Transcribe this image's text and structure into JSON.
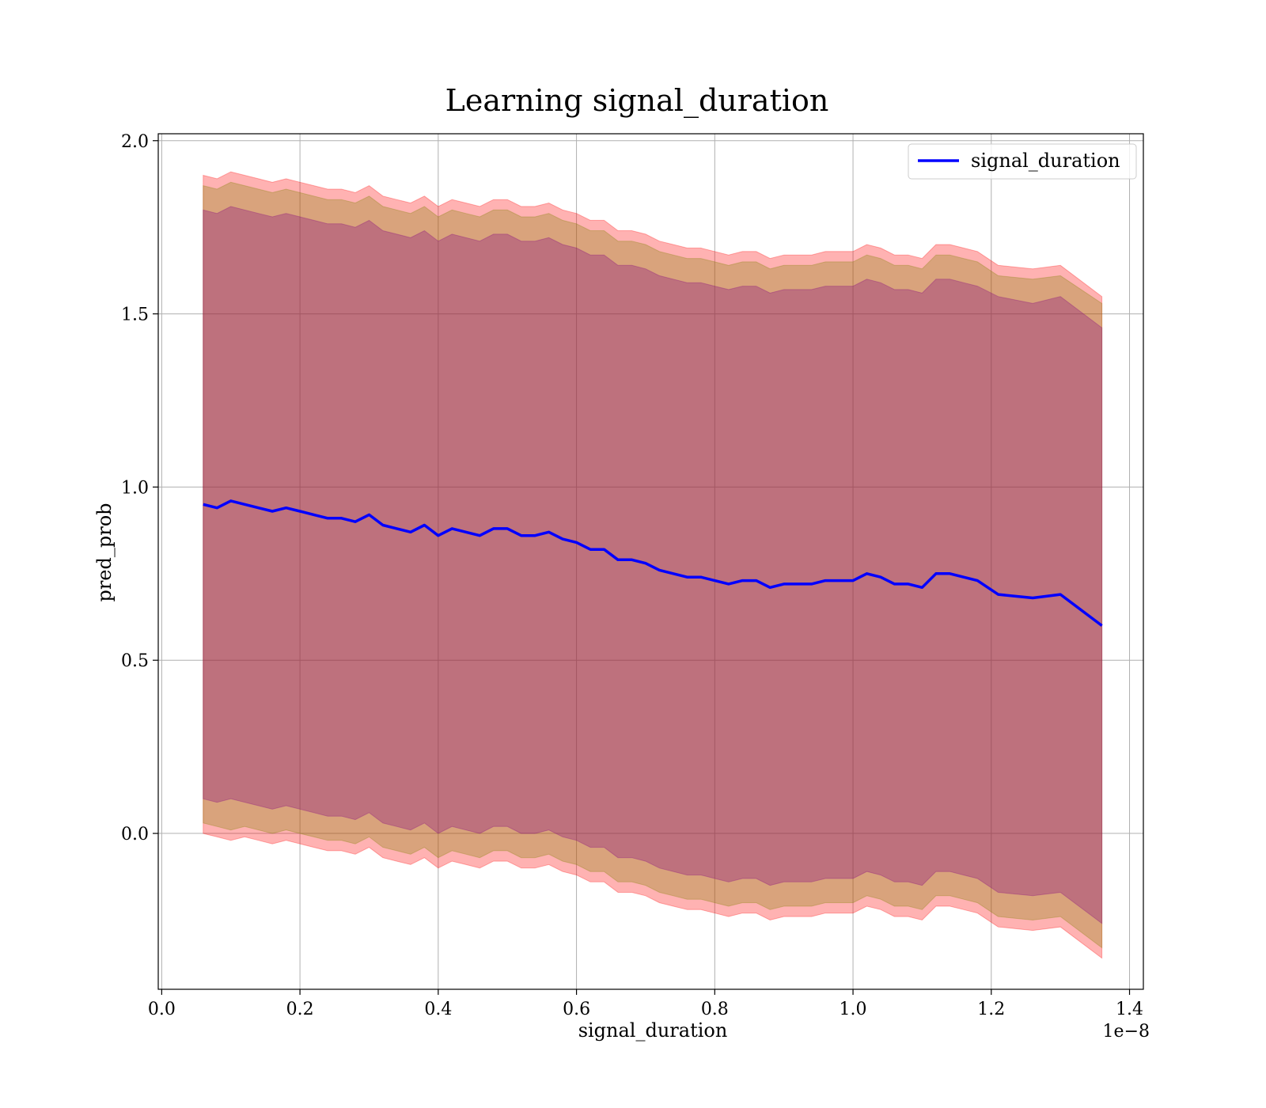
{
  "chart_data": {
    "type": "line",
    "title": "Learning signal_duration",
    "xlabel": "signal_duration",
    "ylabel": "pred_prob",
    "x_offset_label": "1e−8",
    "xlim": [
      -0.005,
      1.42
    ],
    "ylim": [
      -0.45,
      2.02
    ],
    "xticks": [
      0.0,
      0.2,
      0.4,
      0.6,
      0.8,
      1.0,
      1.2,
      1.4
    ],
    "xtick_labels": [
      "0.0",
      "0.2",
      "0.4",
      "0.6",
      "0.8",
      "1.0",
      "1.2",
      "1.4"
    ],
    "yticks": [
      0.0,
      0.5,
      1.0,
      1.5,
      2.0
    ],
    "ytick_labels": [
      "0.0",
      "0.5",
      "1.0",
      "1.5",
      "2.0"
    ],
    "grid": true,
    "legend_position": "top-right",
    "x": [
      0.06,
      0.08,
      0.1,
      0.12,
      0.14,
      0.16,
      0.18,
      0.2,
      0.22,
      0.24,
      0.26,
      0.28,
      0.3,
      0.32,
      0.34,
      0.36,
      0.38,
      0.4,
      0.42,
      0.44,
      0.46,
      0.48,
      0.5,
      0.52,
      0.54,
      0.56,
      0.58,
      0.6,
      0.62,
      0.64,
      0.66,
      0.68,
      0.7,
      0.72,
      0.74,
      0.76,
      0.78,
      0.8,
      0.82,
      0.84,
      0.86,
      0.88,
      0.9,
      0.92,
      0.94,
      0.96,
      0.98,
      1.0,
      1.02,
      1.04,
      1.06,
      1.08,
      1.1,
      1.12,
      1.14,
      1.16,
      1.18,
      1.21,
      1.26,
      1.3,
      1.36
    ],
    "series": [
      {
        "name": "signal_duration",
        "color": "#0000ff",
        "values": [
          0.95,
          0.94,
          0.96,
          0.95,
          0.94,
          0.93,
          0.94,
          0.93,
          0.92,
          0.91,
          0.91,
          0.9,
          0.92,
          0.89,
          0.88,
          0.87,
          0.89,
          0.86,
          0.88,
          0.87,
          0.86,
          0.88,
          0.88,
          0.86,
          0.86,
          0.87,
          0.85,
          0.84,
          0.82,
          0.82,
          0.79,
          0.79,
          0.78,
          0.76,
          0.75,
          0.74,
          0.74,
          0.73,
          0.72,
          0.73,
          0.73,
          0.71,
          0.72,
          0.72,
          0.72,
          0.73,
          0.73,
          0.73,
          0.75,
          0.74,
          0.72,
          0.72,
          0.71,
          0.75,
          0.75,
          0.74,
          0.73,
          0.69,
          0.68,
          0.69,
          0.6
        ]
      }
    ],
    "bands": [
      {
        "color": "#ff0000",
        "opacity": 0.3,
        "lower": [
          0.0,
          -0.01,
          -0.02,
          -0.01,
          -0.02,
          -0.03,
          -0.02,
          -0.03,
          -0.04,
          -0.05,
          -0.05,
          -0.06,
          -0.04,
          -0.07,
          -0.08,
          -0.09,
          -0.07,
          -0.1,
          -0.08,
          -0.09,
          -0.1,
          -0.08,
          -0.08,
          -0.1,
          -0.1,
          -0.09,
          -0.11,
          -0.12,
          -0.14,
          -0.14,
          -0.17,
          -0.17,
          -0.18,
          -0.2,
          -0.21,
          -0.22,
          -0.22,
          -0.23,
          -0.24,
          -0.23,
          -0.23,
          -0.25,
          -0.24,
          -0.24,
          -0.24,
          -0.23,
          -0.23,
          -0.23,
          -0.21,
          -0.22,
          -0.24,
          -0.24,
          -0.25,
          -0.21,
          -0.21,
          -0.22,
          -0.23,
          -0.27,
          -0.28,
          -0.27,
          -0.36
        ],
        "upper": [
          1.9,
          1.89,
          1.91,
          1.9,
          1.89,
          1.88,
          1.89,
          1.88,
          1.87,
          1.86,
          1.86,
          1.85,
          1.87,
          1.84,
          1.83,
          1.82,
          1.84,
          1.81,
          1.83,
          1.82,
          1.81,
          1.83,
          1.83,
          1.81,
          1.81,
          1.82,
          1.8,
          1.79,
          1.77,
          1.77,
          1.74,
          1.74,
          1.73,
          1.71,
          1.7,
          1.69,
          1.69,
          1.68,
          1.67,
          1.68,
          1.68,
          1.66,
          1.67,
          1.67,
          1.67,
          1.68,
          1.68,
          1.68,
          1.7,
          1.69,
          1.67,
          1.67,
          1.66,
          1.7,
          1.7,
          1.69,
          1.68,
          1.64,
          1.63,
          1.64,
          1.55
        ]
      },
      {
        "color": "#808000",
        "opacity": 0.3,
        "lower": [
          0.03,
          0.02,
          0.01,
          0.02,
          0.01,
          0.0,
          0.01,
          0.0,
          -0.01,
          -0.02,
          -0.02,
          -0.03,
          -0.01,
          -0.04,
          -0.05,
          -0.06,
          -0.04,
          -0.07,
          -0.05,
          -0.06,
          -0.07,
          -0.05,
          -0.05,
          -0.07,
          -0.07,
          -0.06,
          -0.08,
          -0.09,
          -0.11,
          -0.11,
          -0.14,
          -0.14,
          -0.15,
          -0.17,
          -0.18,
          -0.19,
          -0.19,
          -0.2,
          -0.21,
          -0.2,
          -0.2,
          -0.22,
          -0.21,
          -0.21,
          -0.21,
          -0.2,
          -0.2,
          -0.2,
          -0.18,
          -0.19,
          -0.21,
          -0.21,
          -0.22,
          -0.18,
          -0.18,
          -0.19,
          -0.2,
          -0.24,
          -0.25,
          -0.24,
          -0.33
        ],
        "upper": [
          1.87,
          1.86,
          1.88,
          1.87,
          1.86,
          1.85,
          1.86,
          1.85,
          1.84,
          1.83,
          1.83,
          1.82,
          1.84,
          1.81,
          1.8,
          1.79,
          1.81,
          1.78,
          1.8,
          1.79,
          1.78,
          1.8,
          1.8,
          1.78,
          1.78,
          1.79,
          1.77,
          1.76,
          1.74,
          1.74,
          1.71,
          1.71,
          1.7,
          1.68,
          1.67,
          1.66,
          1.66,
          1.65,
          1.64,
          1.65,
          1.65,
          1.63,
          1.64,
          1.64,
          1.64,
          1.65,
          1.65,
          1.65,
          1.67,
          1.66,
          1.64,
          1.64,
          1.63,
          1.67,
          1.67,
          1.66,
          1.65,
          1.61,
          1.6,
          1.61,
          1.53
        ]
      },
      {
        "color": "#800080",
        "opacity": 0.3,
        "lower": [
          0.1,
          0.09,
          0.1,
          0.09,
          0.08,
          0.07,
          0.08,
          0.07,
          0.06,
          0.05,
          0.05,
          0.04,
          0.06,
          0.03,
          0.02,
          0.01,
          0.03,
          0.0,
          0.02,
          0.01,
          0.0,
          0.02,
          0.02,
          0.0,
          0.0,
          0.01,
          -0.01,
          -0.02,
          -0.04,
          -0.04,
          -0.07,
          -0.07,
          -0.08,
          -0.1,
          -0.11,
          -0.12,
          -0.12,
          -0.13,
          -0.14,
          -0.13,
          -0.13,
          -0.15,
          -0.14,
          -0.14,
          -0.14,
          -0.13,
          -0.13,
          -0.13,
          -0.11,
          -0.12,
          -0.14,
          -0.14,
          -0.15,
          -0.11,
          -0.11,
          -0.12,
          -0.13,
          -0.17,
          -0.18,
          -0.17,
          -0.26
        ],
        "upper": [
          1.8,
          1.79,
          1.81,
          1.8,
          1.79,
          1.78,
          1.79,
          1.78,
          1.77,
          1.76,
          1.76,
          1.75,
          1.77,
          1.74,
          1.73,
          1.72,
          1.74,
          1.71,
          1.73,
          1.72,
          1.71,
          1.73,
          1.73,
          1.71,
          1.71,
          1.72,
          1.7,
          1.69,
          1.67,
          1.67,
          1.64,
          1.64,
          1.63,
          1.61,
          1.6,
          1.59,
          1.59,
          1.58,
          1.57,
          1.58,
          1.58,
          1.56,
          1.57,
          1.57,
          1.57,
          1.58,
          1.58,
          1.58,
          1.6,
          1.59,
          1.57,
          1.57,
          1.56,
          1.6,
          1.6,
          1.59,
          1.58,
          1.55,
          1.53,
          1.55,
          1.46
        ]
      }
    ]
  }
}
